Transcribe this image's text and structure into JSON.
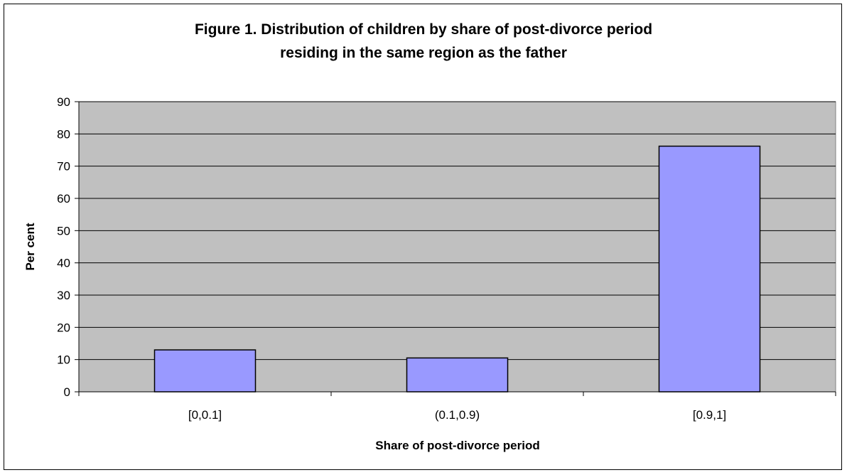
{
  "chart_data": {
    "type": "bar",
    "title_lines": [
      "Figure 1. Distribution of children by share of post-divorce period",
      "residing in the same region as the father"
    ],
    "xlabel": "Share of post-divorce period",
    "ylabel": "Per cent",
    "categories": [
      "[0,0.1]",
      "(0.1,0.9)",
      "[0.9,1]"
    ],
    "values": [
      13,
      10.5,
      76.2
    ],
    "ylim": [
      0,
      90
    ],
    "yticks": [
      0,
      10,
      20,
      30,
      40,
      50,
      60,
      70,
      80,
      90
    ],
    "grid": true,
    "legend": "none",
    "colors": {
      "plot_background": "#c0c0c0",
      "bar_fill": "#9999ff",
      "bar_stroke": "#000000",
      "gridline": "#000000"
    }
  }
}
